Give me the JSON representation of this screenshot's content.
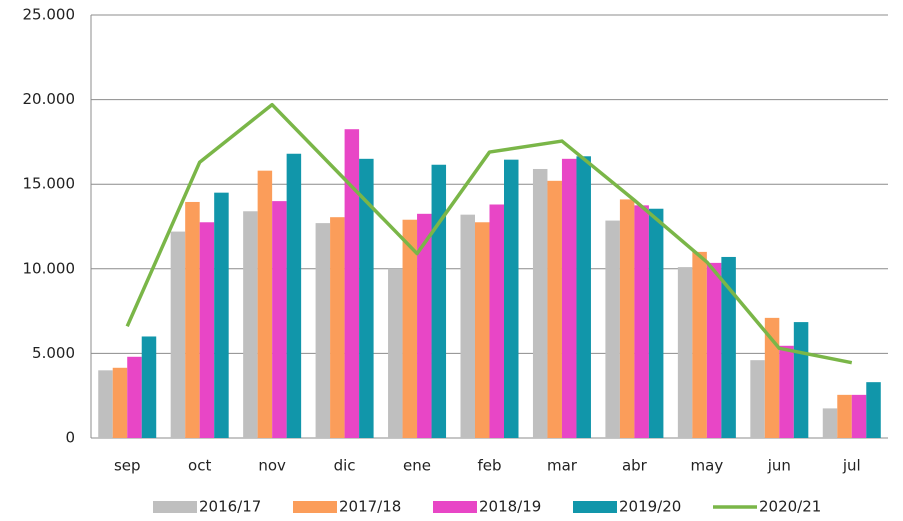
{
  "chart_data": {
    "type": "bar",
    "categories": [
      "sep",
      "oct",
      "nov",
      "dic",
      "ene",
      "feb",
      "mar",
      "abr",
      "may",
      "jun",
      "jul"
    ],
    "series": [
      {
        "name": "2016/17",
        "color": "#bfbfbf",
        "values": [
          4000,
          12200,
          13400,
          12700,
          10000,
          13200,
          15900,
          12850,
          10100,
          4600,
          1750
        ]
      },
      {
        "name": "2017/18",
        "color": "#fb9d5a",
        "values": [
          4150,
          13950,
          15800,
          13050,
          12900,
          12750,
          15200,
          14100,
          11000,
          7100,
          2550
        ]
      },
      {
        "name": "2018/19",
        "color": "#e846c6",
        "values": [
          4800,
          12750,
          14000,
          18250,
          13250,
          13800,
          16500,
          13750,
          10350,
          5450,
          2550
        ]
      },
      {
        "name": "2019/20",
        "color": "#1196aa",
        "values": [
          6000,
          14500,
          16800,
          16500,
          16150,
          16450,
          16650,
          13550,
          10700,
          6850,
          3300
        ]
      },
      {
        "name": "2020/21",
        "color": "#7ab648",
        "type": "line",
        "values": [
          6600,
          16300,
          19700,
          15300,
          10900,
          16900,
          17550,
          14050,
          10400,
          5300,
          4450
        ]
      }
    ],
    "ylim": [
      0,
      25000
    ],
    "yticks": [
      0,
      {
        "value": 5000,
        "label": "5.000"
      },
      {
        "value": 10000,
        "label": "10.000"
      },
      {
        "value": 15000,
        "label": "15.000"
      },
      {
        "value": 20000,
        "label": "20.000"
      },
      {
        "value": 25000,
        "label": "25.000"
      }
    ],
    "grid": true
  }
}
